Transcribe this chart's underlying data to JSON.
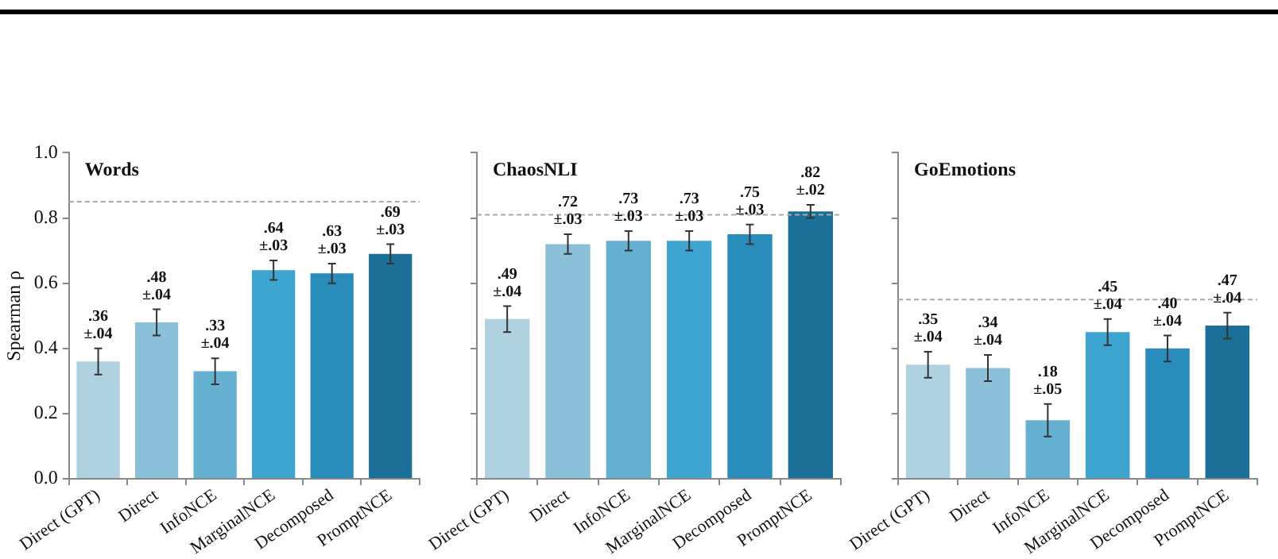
{
  "chart_data": [
    {
      "type": "bar",
      "title": "Words",
      "ylabel": "Spearman ρ",
      "categories": [
        "Direct (GPT)",
        "Direct",
        "InfoNCE",
        "MarginalNCE",
        "Decomposed",
        "PromptNCE"
      ],
      "values": [
        0.36,
        0.48,
        0.33,
        0.64,
        0.63,
        0.69
      ],
      "errors": [
        0.04,
        0.04,
        0.04,
        0.03,
        0.03,
        0.03
      ],
      "value_labels": [
        ".36 ±.04",
        ".48 ±.04",
        ".33 ±.04",
        ".64 ±.03",
        ".63 ±.03",
        ".69 ±.03"
      ],
      "colors": [
        "#aed2e0",
        "#8bc0d8",
        "#66b1d1",
        "#3ea5d0",
        "#2a8cbb",
        "#1c7098"
      ],
      "ylim": [
        0,
        1
      ],
      "yticks": [
        {
          "value": 0,
          "label": "0.0"
        },
        {
          "value": 0.2,
          "label": "0.2"
        },
        {
          "value": 0.4,
          "label": "0.4"
        },
        {
          "value": 0.6,
          "label": "0.6"
        },
        {
          "value": 0.8,
          "label": "0.8"
        },
        {
          "value": 1,
          "label": "1.0"
        }
      ],
      "ref_lines": [
        {
          "axis": "y",
          "value": 0.85,
          "color": "#aaaaaa",
          "line_style": "dashed"
        }
      ],
      "grid": false
    },
    {
      "type": "bar",
      "title": "ChaosNLI",
      "categories": [
        "Direct (GPT)",
        "Direct",
        "InfoNCE",
        "MarginalNCE",
        "Decomposed",
        "PromptNCE"
      ],
      "values": [
        0.49,
        0.72,
        0.73,
        0.73,
        0.75,
        0.82
      ],
      "errors": [
        0.04,
        0.03,
        0.03,
        0.03,
        0.03,
        0.02
      ],
      "value_labels": [
        ".49 ±.04",
        ".72 ±.03",
        ".73 ±.03",
        ".73 ±.03",
        ".75 ±.03",
        ".82 ±.02"
      ],
      "colors": [
        "#aed2e0",
        "#8bc0d8",
        "#66b1d1",
        "#3ea5d0",
        "#2a8cbb",
        "#1c7098"
      ],
      "ylim": [
        0,
        1
      ],
      "yticks": [
        0,
        0.2,
        0.4,
        0.6,
        0.8,
        1
      ],
      "tick_labels": "x",
      "ref_lines": [
        {
          "axis": "y",
          "value": 0.81,
          "color": "#aaaaaa",
          "line_style": "dashed"
        }
      ],
      "grid": false
    },
    {
      "type": "bar",
      "title": "GoEmotions",
      "categories": [
        "Direct (GPT)",
        "Direct",
        "InfoNCE",
        "MarginalNCE",
        "Decomposed",
        "PromptNCE"
      ],
      "values": [
        0.35,
        0.34,
        0.18,
        0.45,
        0.4,
        0.47
      ],
      "errors": [
        0.04,
        0.04,
        0.05,
        0.04,
        0.04,
        0.04
      ],
      "value_labels": [
        ".35 ±.04",
        ".34 ±.04",
        ".18 ±.05",
        ".45 ±.04",
        ".40 ±.04",
        ".47 ±.04"
      ],
      "colors": [
        "#aed2e0",
        "#8bc0d8",
        "#66b1d1",
        "#3ea5d0",
        "#2a8cbb",
        "#1c7098"
      ],
      "ylim": [
        0,
        1
      ],
      "yticks": [
        0,
        0.2,
        0.4,
        0.6,
        0.8,
        1
      ],
      "tick_labels": "x",
      "ref_lines": [
        {
          "axis": "y",
          "value": 0.55,
          "color": "#aaaaaa",
          "line_style": "dashed"
        }
      ],
      "grid": false
    }
  ]
}
